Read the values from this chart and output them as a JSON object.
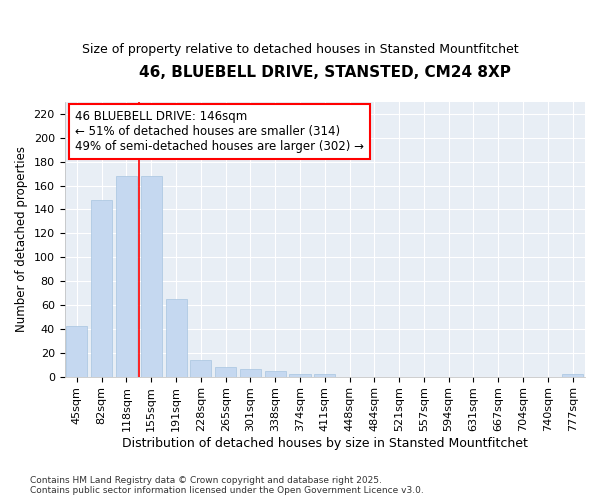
{
  "title": "46, BLUEBELL DRIVE, STANSTED, CM24 8XP",
  "subtitle": "Size of property relative to detached houses in Stansted Mountfitchet",
  "xlabel": "Distribution of detached houses by size in Stansted Mountfitchet",
  "ylabel": "Number of detached properties",
  "categories": [
    "45sqm",
    "82sqm",
    "118sqm",
    "155sqm",
    "191sqm",
    "228sqm",
    "265sqm",
    "301sqm",
    "338sqm",
    "374sqm",
    "411sqm",
    "448sqm",
    "484sqm",
    "521sqm",
    "557sqm",
    "594sqm",
    "631sqm",
    "667sqm",
    "704sqm",
    "740sqm",
    "777sqm"
  ],
  "values": [
    42,
    148,
    168,
    168,
    65,
    14,
    8,
    6,
    5,
    2,
    2,
    0,
    0,
    0,
    0,
    0,
    0,
    0,
    0,
    0,
    2
  ],
  "bar_color": "#c5d8f0",
  "bar_edge_color": "#a8c4e0",
  "vline_x": 2.5,
  "vline_color": "red",
  "annotation_text": "46 BLUEBELL DRIVE: 146sqm\n← 51% of detached houses are smaller (314)\n49% of semi-detached houses are larger (302) →",
  "annotation_box_color": "white",
  "annotation_box_edge_color": "red",
  "ylim": [
    0,
    230
  ],
  "yticks": [
    0,
    20,
    40,
    60,
    80,
    100,
    120,
    140,
    160,
    180,
    200,
    220
  ],
  "background_color": "#ffffff",
  "plot_bg_color": "#e8eef5",
  "grid_color": "#ffffff",
  "footer": "Contains HM Land Registry data © Crown copyright and database right 2025.\nContains public sector information licensed under the Open Government Licence v3.0.",
  "title_fontsize": 11,
  "subtitle_fontsize": 9,
  "xlabel_fontsize": 9,
  "ylabel_fontsize": 8.5,
  "tick_fontsize": 8,
  "annotation_fontsize": 8.5,
  "footer_fontsize": 6.5
}
